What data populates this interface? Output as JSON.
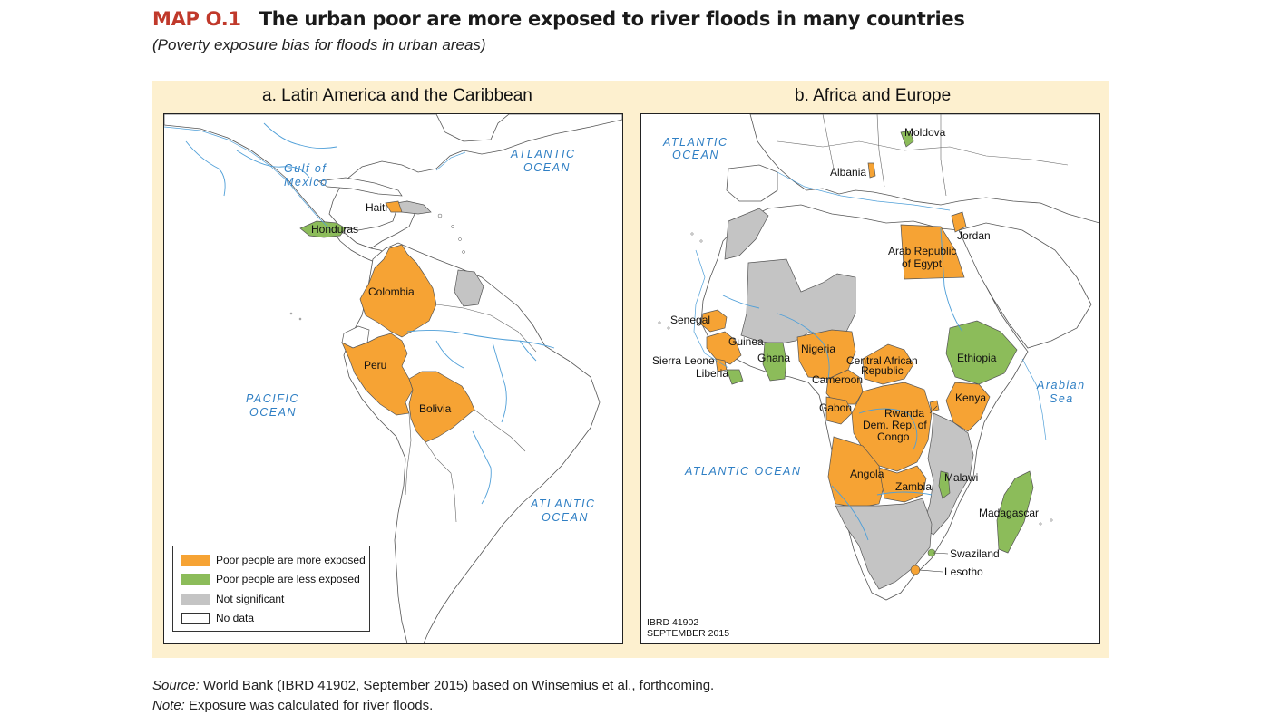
{
  "header": {
    "map_code": "MAP O.1",
    "title": "The urban poor are more exposed to river floods in many countries",
    "subtitle": "(Poverty exposure bias for floods in urban areas)"
  },
  "colors": {
    "more_exposed": "#f6a334",
    "less_exposed": "#8cbc5a",
    "not_significant": "#c4c4c4",
    "no_data": "#ffffff",
    "panel_background": "#fdf0cf",
    "water_lines": "#4f9fd8",
    "title_code": "#c0392b"
  },
  "panels": [
    {
      "title": "a.  Latin America and the Caribbean",
      "oceans": [
        "Gulf of",
        "Mexico",
        "ATLANTIC",
        "OCEAN",
        "PACIFIC",
        "OCEAN",
        "ATLANTIC",
        "OCEAN"
      ],
      "countries": [
        {
          "name": "Haiti",
          "category": "more_exposed"
        },
        {
          "name": "Honduras",
          "category": "less_exposed"
        },
        {
          "name": "Colombia",
          "category": "more_exposed"
        },
        {
          "name": "Peru",
          "category": "more_exposed"
        },
        {
          "name": "Bolivia",
          "category": "more_exposed"
        }
      ]
    },
    {
      "title": "b. Africa and Europe",
      "oceans": [
        "ATLANTIC",
        "OCEAN",
        "ATLANTIC OCEAN",
        "Arabian",
        "Sea"
      ],
      "countries": [
        {
          "name": "Moldova",
          "category": "less_exposed"
        },
        {
          "name": "Albania",
          "category": "more_exposed"
        },
        {
          "name": "Jordan",
          "category": "more_exposed"
        },
        {
          "name": "Arab Republic",
          "category": "more_exposed"
        },
        {
          "name": "of Egypt",
          "category": "more_exposed"
        },
        {
          "name": "Senegal",
          "category": "more_exposed"
        },
        {
          "name": "Guinea",
          "category": "more_exposed"
        },
        {
          "name": "Sierra Leone",
          "category": "more_exposed"
        },
        {
          "name": "Liberia",
          "category": "less_exposed"
        },
        {
          "name": "Ghana",
          "category": "less_exposed"
        },
        {
          "name": "Nigeria",
          "category": "more_exposed"
        },
        {
          "name": "Central African",
          "category": "more_exposed"
        },
        {
          "name": "Republic",
          "category": "more_exposed"
        },
        {
          "name": "Cameroon",
          "category": "more_exposed"
        },
        {
          "name": "Gabon",
          "category": "more_exposed"
        },
        {
          "name": "Ethiopia",
          "category": "less_exposed"
        },
        {
          "name": "Kenya",
          "category": "more_exposed"
        },
        {
          "name": "Rwanda",
          "category": "more_exposed"
        },
        {
          "name": "Dem. Rep. of",
          "category": "more_exposed"
        },
        {
          "name": "Congo",
          "category": "more_exposed"
        },
        {
          "name": "Angola",
          "category": "more_exposed"
        },
        {
          "name": "Zambia",
          "category": "more_exposed"
        },
        {
          "name": "Malawi",
          "category": "less_exposed"
        },
        {
          "name": "Madagascar",
          "category": "less_exposed"
        },
        {
          "name": "Swaziland",
          "category": "less_exposed"
        },
        {
          "name": "Lesotho",
          "category": "more_exposed"
        }
      ],
      "stamp": [
        "IBRD 41902",
        "SEPTEMBER 2015"
      ]
    }
  ],
  "legend": [
    {
      "label": "Poor people are more exposed",
      "color": "#f6a334"
    },
    {
      "label": "Poor people are less exposed",
      "color": "#8cbc5a"
    },
    {
      "label": "Not significant",
      "color": "#c4c4c4"
    },
    {
      "label": "No data",
      "color": "#ffffff"
    }
  ],
  "footer": {
    "source_label": "Source:",
    "source_text": " World Bank (IBRD 41902, September 2015) based on Winsemius et al., forthcoming.",
    "note_label": "Note:",
    "note_text": " Exposure was calculated for river floods."
  }
}
